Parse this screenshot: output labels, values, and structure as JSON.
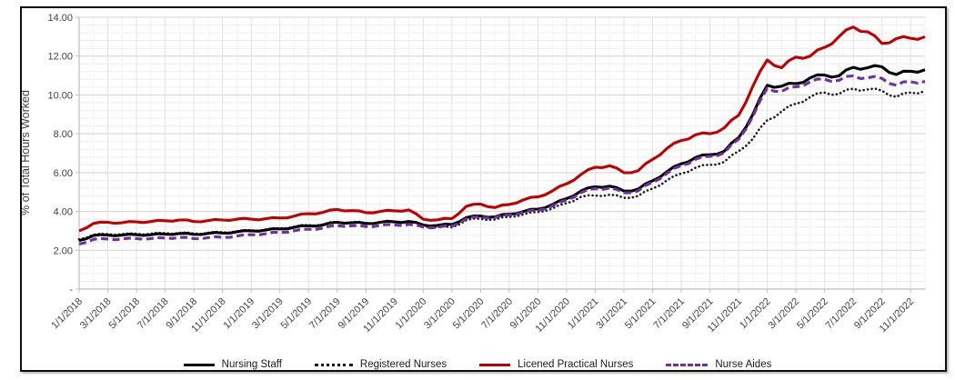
{
  "chart_data": {
    "type": "line",
    "title": "",
    "xlabel": "",
    "ylabel": "% of Total Hours Worked",
    "ylim": [
      0,
      14
    ],
    "y_major_step": 2,
    "y_minor_step": 0.4,
    "grid": true,
    "legend_position": "bottom",
    "y_major_ticks": [
      "-",
      "2.00",
      "4.00",
      "6.00",
      "8.00",
      "10.00",
      "12.00",
      "14.00"
    ],
    "x_tick_labels": [
      "1/1/2018",
      "3/1/2018",
      "5/1/2018",
      "7/1/2018",
      "9/1/2018",
      "11/1/2018",
      "1/1/2019",
      "3/1/2019",
      "5/1/2019",
      "7/1/2019",
      "9/1/2019",
      "11/1/2019",
      "1/1/2020",
      "3/1/2020",
      "5/1/2020",
      "7/1/2020",
      "9/1/2020",
      "11/1/2020",
      "1/1/2021",
      "3/1/2021",
      "5/1/2021",
      "7/1/2021",
      "9/1/2021",
      "11/1/2021",
      "1/1/2022",
      "3/1/2022",
      "5/1/2022",
      "7/1/2022",
      "9/1/2022",
      "11/1/2022"
    ],
    "x_tick_every": 2,
    "x_start": "1/2018",
    "x_end": "12/2022",
    "x_frequency": "monthly",
    "colors": {
      "nursing_staff": "#000000",
      "registered_nurses": "#1a1a1a",
      "licened_practical_nurses": "#c00000",
      "nurse_aides": "#7030a0",
      "grid_major": "#d6d6d6",
      "grid_minor": "#ededed",
      "axis": "#bfbfbf",
      "tick_text": "#3f3f3f"
    },
    "series": [
      {
        "name": "Nursing Staff",
        "color": "#000000",
        "style": "solid",
        "values": [
          2.5,
          2.76,
          2.78,
          2.78,
          2.8,
          2.8,
          2.83,
          2.86,
          2.82,
          2.87,
          2.89,
          2.95,
          3.0,
          3.04,
          3.1,
          3.18,
          3.26,
          3.3,
          3.44,
          3.42,
          3.38,
          3.44,
          3.46,
          3.48,
          3.3,
          3.28,
          3.33,
          3.68,
          3.76,
          3.72,
          3.86,
          4.0,
          4.12,
          4.35,
          4.66,
          5.05,
          5.27,
          5.3,
          5.05,
          5.15,
          5.58,
          6.05,
          6.45,
          6.78,
          6.92,
          7.1,
          7.8,
          9.0,
          10.5,
          10.45,
          10.58,
          10.88,
          11.02,
          10.98,
          11.42,
          11.4,
          11.45,
          11.05,
          11.22,
          11.3
        ]
      },
      {
        "name": "Registered Nurses",
        "color": "#1a1a1a",
        "style": "dotted",
        "values": [
          2.56,
          2.8,
          2.83,
          2.83,
          2.85,
          2.85,
          2.88,
          2.9,
          2.86,
          2.9,
          2.92,
          2.98,
          3.03,
          3.07,
          3.13,
          3.21,
          3.29,
          3.33,
          3.46,
          3.44,
          3.4,
          3.46,
          3.48,
          3.5,
          3.25,
          3.2,
          3.18,
          3.55,
          3.62,
          3.58,
          3.72,
          3.85,
          3.97,
          4.15,
          4.42,
          4.75,
          4.82,
          4.86,
          4.7,
          4.8,
          5.18,
          5.6,
          5.95,
          6.25,
          6.4,
          6.55,
          7.1,
          7.75,
          8.7,
          9.15,
          9.55,
          9.9,
          10.12,
          10.05,
          10.32,
          10.28,
          10.22,
          9.9,
          10.12,
          10.2
        ]
      },
      {
        "name": "Licened Practical Nurses",
        "color": "#c00000",
        "style": "solid",
        "values": [
          3.0,
          3.38,
          3.44,
          3.42,
          3.46,
          3.48,
          3.52,
          3.56,
          3.48,
          3.53,
          3.56,
          3.6,
          3.6,
          3.62,
          3.66,
          3.76,
          3.88,
          3.95,
          4.1,
          4.04,
          3.94,
          4.0,
          4.03,
          4.08,
          3.6,
          3.57,
          3.63,
          4.26,
          4.38,
          4.2,
          4.36,
          4.6,
          4.75,
          5.05,
          5.42,
          5.9,
          6.28,
          6.35,
          6.0,
          6.1,
          6.68,
          7.25,
          7.65,
          7.95,
          8.0,
          8.3,
          8.95,
          10.45,
          11.8,
          11.4,
          11.95,
          12.0,
          12.45,
          13.0,
          13.5,
          13.25,
          12.65,
          12.9,
          12.92,
          13.0
        ]
      },
      {
        "name": "Nurse Aides",
        "color": "#7030a0",
        "style": "dashed",
        "values": [
          2.32,
          2.56,
          2.58,
          2.58,
          2.6,
          2.6,
          2.63,
          2.66,
          2.6,
          2.65,
          2.67,
          2.73,
          2.8,
          2.85,
          2.92,
          3.0,
          3.08,
          3.14,
          3.27,
          3.26,
          3.22,
          3.28,
          3.3,
          3.33,
          3.2,
          3.18,
          3.24,
          3.62,
          3.72,
          3.68,
          3.82,
          3.96,
          4.06,
          4.28,
          4.58,
          4.97,
          5.17,
          5.2,
          4.96,
          5.06,
          5.5,
          5.96,
          6.36,
          6.68,
          6.84,
          7.02,
          7.72,
          8.9,
          10.35,
          10.18,
          10.42,
          10.68,
          10.8,
          10.75,
          10.98,
          10.88,
          10.85,
          10.5,
          10.68,
          10.7
        ]
      }
    ]
  }
}
